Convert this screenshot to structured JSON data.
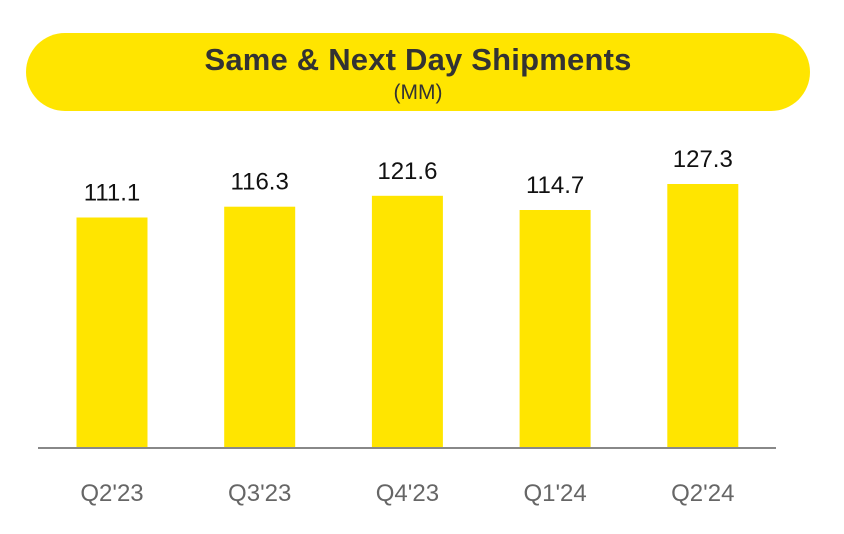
{
  "colors": {
    "accent": "#FFE500",
    "bar": "#FFE500",
    "axis": "#888888",
    "label": "#111111",
    "tick_label": "#666666",
    "title": "#333333"
  },
  "chart_data": {
    "type": "bar",
    "title": "Same & Next Day Shipments",
    "subtitle": "(MM)",
    "categories": [
      "Q2'23",
      "Q3'23",
      "Q4'23",
      "Q1'24",
      "Q2'24"
    ],
    "values": [
      111.1,
      116.3,
      121.6,
      114.7,
      127.3
    ],
    "data_labels": [
      "111.1",
      "116.3",
      "121.6",
      "114.7",
      "127.3"
    ],
    "xlabel": "",
    "ylabel": "",
    "ylim": [
      0,
      127.3
    ],
    "grid": false,
    "legend": "none"
  }
}
